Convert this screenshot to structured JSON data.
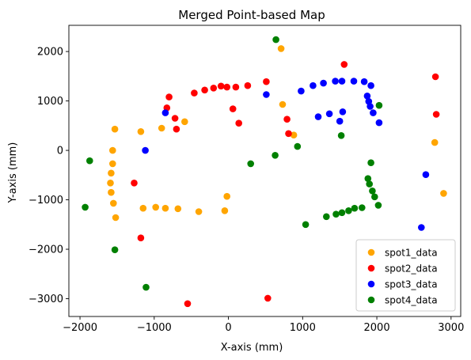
{
  "chart_data": {
    "type": "scatter",
    "title": "Merged Point-based Map",
    "xlabel": "X-axis (mm)",
    "ylabel": "Y-axis (mm)",
    "xlim": [
      -2150,
      3130
    ],
    "ylim": [
      -3360,
      2530
    ],
    "xticks": [
      -2000,
      -1000,
      0,
      1000,
      2000,
      3000
    ],
    "yticks": [
      -3000,
      -2000,
      -1000,
      0,
      1000,
      2000
    ],
    "xtick_labels": [
      "−2000",
      "−1000",
      "0",
      "1000",
      "2000",
      "3000"
    ],
    "ytick_labels": [
      "−3000",
      "−2000",
      "−1000",
      "0",
      "1000",
      "2000"
    ],
    "grid": false,
    "legend_position": "lower-right",
    "series": [
      {
        "name": "spot1_data",
        "color": "#ffa500",
        "points": [
          [
            -1530,
            430
          ],
          [
            -1560,
            0
          ],
          [
            -1560,
            -270
          ],
          [
            -1580,
            -460
          ],
          [
            -1590,
            -660
          ],
          [
            -1580,
            -850
          ],
          [
            -1550,
            -1070
          ],
          [
            -1520,
            -1360
          ],
          [
            -1180,
            380
          ],
          [
            -1150,
            -1170
          ],
          [
            -980,
            -1150
          ],
          [
            -850,
            -1170
          ],
          [
            -680,
            -1180
          ],
          [
            -900,
            450
          ],
          [
            -590,
            580
          ],
          [
            -400,
            -1240
          ],
          [
            -50,
            -1220
          ],
          [
            -20,
            -930
          ],
          [
            710,
            2060
          ],
          [
            730,
            930
          ],
          [
            880,
            310
          ],
          [
            2780,
            160
          ],
          [
            2900,
            -870
          ]
        ]
      },
      {
        "name": "spot2_data",
        "color": "#ff0000",
        "points": [
          [
            -830,
            860
          ],
          [
            -800,
            1080
          ],
          [
            -720,
            650
          ],
          [
            -700,
            430
          ],
          [
            -460,
            1160
          ],
          [
            -320,
            1220
          ],
          [
            -200,
            1260
          ],
          [
            -100,
            1300
          ],
          [
            -20,
            1280
          ],
          [
            100,
            1280
          ],
          [
            260,
            1310
          ],
          [
            510,
            1390
          ],
          [
            60,
            840
          ],
          [
            140,
            550
          ],
          [
            790,
            630
          ],
          [
            810,
            340
          ],
          [
            1560,
            1740
          ],
          [
            2790,
            1490
          ],
          [
            2800,
            730
          ],
          [
            -1270,
            -660
          ],
          [
            -1180,
            -1770
          ],
          [
            -550,
            -3100
          ],
          [
            530,
            -2990
          ]
        ]
      },
      {
        "name": "spot3_data",
        "color": "#0000ff",
        "points": [
          [
            -850,
            760
          ],
          [
            -1120,
            0
          ],
          [
            510,
            1130
          ],
          [
            980,
            1200
          ],
          [
            1140,
            1310
          ],
          [
            1210,
            680
          ],
          [
            1280,
            1360
          ],
          [
            1360,
            740
          ],
          [
            1440,
            1400
          ],
          [
            1500,
            590
          ],
          [
            1530,
            1400
          ],
          [
            1540,
            780
          ],
          [
            1690,
            1400
          ],
          [
            1830,
            1390
          ],
          [
            1870,
            1100
          ],
          [
            1890,
            990
          ],
          [
            1910,
            890
          ],
          [
            1920,
            1310
          ],
          [
            1950,
            760
          ],
          [
            2030,
            560
          ],
          [
            2660,
            -490
          ],
          [
            2600,
            -1560
          ]
        ]
      },
      {
        "name": "spot4_data",
        "color": "#008000",
        "points": [
          [
            -1870,
            -210
          ],
          [
            -1930,
            -1150
          ],
          [
            -1530,
            -2010
          ],
          [
            -1110,
            -2770
          ],
          [
            300,
            -270
          ],
          [
            630,
            -100
          ],
          [
            640,
            2240
          ],
          [
            930,
            80
          ],
          [
            1040,
            -1500
          ],
          [
            1320,
            -1340
          ],
          [
            1450,
            -1290
          ],
          [
            1530,
            -1260
          ],
          [
            1620,
            -1220
          ],
          [
            1700,
            -1170
          ],
          [
            1800,
            -1160
          ],
          [
            1520,
            300
          ],
          [
            1880,
            -570
          ],
          [
            1900,
            -680
          ],
          [
            1920,
            -250
          ],
          [
            1940,
            -820
          ],
          [
            1970,
            -940
          ],
          [
            2030,
            910
          ],
          [
            2020,
            -1110
          ]
        ]
      }
    ]
  }
}
